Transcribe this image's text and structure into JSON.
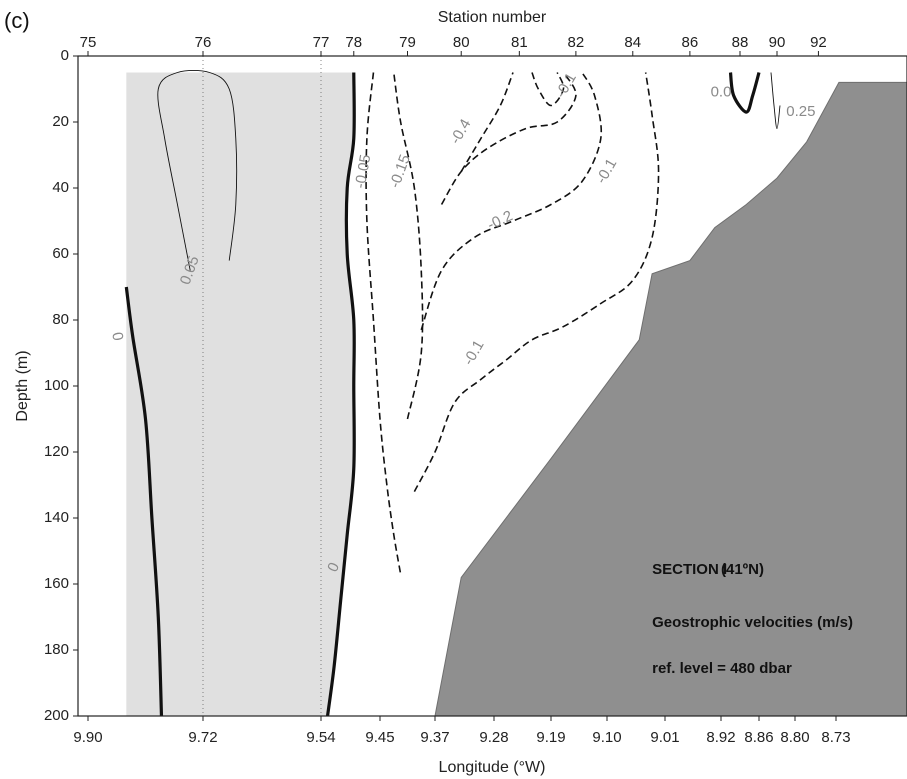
{
  "chart_data": {
    "type": "contour",
    "panel_label": "(c)",
    "top_axis_label": "Station number",
    "xlabel": "Longitude (°W)",
    "ylabel": "Depth (m)",
    "ylim": [
      0,
      200
    ],
    "y_ticks": [
      0,
      20,
      40,
      60,
      80,
      100,
      120,
      140,
      160,
      180,
      200
    ],
    "x_ticks": [
      "9.90",
      "9.72",
      "9.54",
      "9.45",
      "9.37",
      "9.28",
      "9.19",
      "9.10",
      "9.01",
      "8.92",
      "8.86",
      "8.80",
      "8.73"
    ],
    "x_tick_values": [
      9.9,
      9.72,
      9.54,
      9.45,
      9.37,
      9.28,
      9.19,
      9.1,
      9.01,
      8.92,
      8.86,
      8.8,
      8.73
    ],
    "stations": [
      {
        "label": "75",
        "lon": 9.9
      },
      {
        "label": "76",
        "lon": 9.72
      },
      {
        "label": "77",
        "lon": 9.54
      },
      {
        "label": "78",
        "lon": 9.49
      },
      {
        "label": "79",
        "lon": 9.41
      },
      {
        "label": "80",
        "lon": 9.33
      },
      {
        "label": "81",
        "lon": 9.24
      },
      {
        "label": "82",
        "lon": 9.15
      },
      {
        "label": "84",
        "lon": 9.06
      },
      {
        "label": "86",
        "lon": 8.97
      },
      {
        "label": "88",
        "lon": 8.89
      },
      {
        "label": "90",
        "lon": 8.83
      },
      {
        "label": "92",
        "lon": 8.76
      }
    ],
    "bathymetry": [
      [
        9.37,
        200
      ],
      [
        9.33,
        158
      ],
      [
        9.19,
        122
      ],
      [
        9.05,
        86
      ],
      [
        9.03,
        66
      ],
      [
        8.97,
        62
      ],
      [
        8.93,
        52
      ],
      [
        8.88,
        45
      ],
      [
        8.83,
        37
      ],
      [
        8.78,
        26
      ],
      [
        8.725,
        8
      ]
    ],
    "shaded_region": {
      "lon_from": 9.84,
      "depth_top": 5
    },
    "contours": [
      {
        "level": 0,
        "style": "thick",
        "points": [
          [
            9.84,
            70
          ],
          [
            9.83,
            85
          ],
          [
            9.81,
            110
          ],
          [
            9.8,
            140
          ],
          [
            9.79,
            170
          ],
          [
            9.785,
            200
          ]
        ]
      },
      {
        "level": 0,
        "style": "thick",
        "points": [
          [
            9.49,
            5
          ],
          [
            9.49,
            25
          ],
          [
            9.5,
            40
          ],
          [
            9.5,
            60
          ],
          [
            9.49,
            80
          ],
          [
            9.49,
            100
          ],
          [
            9.49,
            125
          ],
          [
            9.5,
            145
          ],
          [
            9.51,
            165
          ],
          [
            9.52,
            185
          ],
          [
            9.53,
            200
          ]
        ]
      },
      {
        "level": 0.05,
        "style": "solid",
        "points": [
          [
            9.68,
            62
          ],
          [
            9.67,
            45
          ],
          [
            9.67,
            25
          ],
          [
            9.68,
            10
          ],
          [
            9.71,
            5
          ],
          [
            9.76,
            5
          ],
          [
            9.79,
            10
          ],
          [
            9.78,
            25
          ],
          [
            9.76,
            45
          ],
          [
            9.74,
            65
          ]
        ]
      },
      {
        "level": -0.05,
        "style": "dashed",
        "points": [
          [
            9.46,
            5
          ],
          [
            9.47,
            25
          ],
          [
            9.47,
            50
          ],
          [
            9.46,
            80
          ],
          [
            9.45,
            110
          ],
          [
            9.44,
            130
          ],
          [
            9.43,
            145
          ],
          [
            9.42,
            157
          ]
        ]
      },
      {
        "level": -0.1,
        "style": "dashed",
        "points": [
          [
            9.4,
            132
          ],
          [
            9.37,
            120
          ],
          [
            9.34,
            105
          ],
          [
            9.3,
            98
          ],
          [
            9.26,
            92
          ],
          [
            9.22,
            86
          ],
          [
            9.17,
            82
          ],
          [
            9.11,
            75
          ],
          [
            9.06,
            68
          ],
          [
            9.03,
            55
          ],
          [
            9.02,
            35
          ],
          [
            9.03,
            18
          ],
          [
            9.04,
            5
          ]
        ]
      },
      {
        "level": -0.15,
        "style": "dashed",
        "points": [
          [
            9.41,
            110
          ],
          [
            9.39,
            90
          ],
          [
            9.39,
            65
          ],
          [
            9.4,
            40
          ],
          [
            9.42,
            20
          ],
          [
            9.43,
            5
          ]
        ]
      },
      {
        "level": -0.2,
        "style": "dashed",
        "points": [
          [
            9.39,
            83
          ],
          [
            9.36,
            65
          ],
          [
            9.31,
            55
          ],
          [
            9.25,
            50
          ],
          [
            9.19,
            45
          ],
          [
            9.14,
            38
          ],
          [
            9.11,
            25
          ],
          [
            9.12,
            12
          ],
          [
            9.14,
            5
          ]
        ]
      },
      {
        "level": -0.3,
        "style": "dashed",
        "points": [
          [
            9.36,
            45
          ],
          [
            9.33,
            35
          ],
          [
            9.29,
            28
          ],
          [
            9.23,
            22
          ],
          [
            9.18,
            20
          ],
          [
            9.15,
            12
          ],
          [
            9.17,
            5
          ]
        ]
      },
      {
        "level": -0.4,
        "style": "dashed",
        "points": [
          [
            9.33,
            35
          ],
          [
            9.3,
            25
          ],
          [
            9.27,
            15
          ],
          [
            9.25,
            5
          ]
        ]
      },
      {
        "level": -0.1,
        "style": "dashed",
        "points": [
          [
            9.22,
            5
          ],
          [
            9.21,
            10
          ],
          [
            9.19,
            15
          ],
          [
            9.17,
            10
          ],
          [
            9.18,
            5
          ]
        ]
      },
      {
        "level": 0,
        "style": "thick",
        "points": [
          [
            8.905,
            5
          ],
          [
            8.9,
            12
          ],
          [
            8.88,
            17
          ],
          [
            8.87,
            12
          ],
          [
            8.86,
            5
          ]
        ]
      },
      {
        "level": 0.25,
        "style": "solid",
        "points": [
          [
            8.84,
            5
          ],
          [
            8.835,
            15
          ],
          [
            8.83,
            22
          ],
          [
            8.825,
            15
          ]
        ]
      }
    ],
    "contour_labels": [
      {
        "text": "0",
        "lon": 9.855,
        "depth": 85,
        "rotate": 80
      },
      {
        "text": "0",
        "lon": 9.52,
        "depth": 155,
        "rotate": -65
      },
      {
        "text": "0.05",
        "lon": 9.74,
        "depth": 65,
        "rotate": -70
      },
      {
        "text": "-0.05",
        "lon": 9.475,
        "depth": 35,
        "rotate": -80
      },
      {
        "text": "-0.15",
        "lon": 9.42,
        "depth": 35,
        "rotate": -70
      },
      {
        "text": "-0.4",
        "lon": 9.33,
        "depth": 23,
        "rotate": -60
      },
      {
        "text": "-0.2",
        "lon": 9.27,
        "depth": 50,
        "rotate": -25
      },
      {
        "text": "-0.1",
        "lon": 9.31,
        "depth": 90,
        "rotate": -60
      },
      {
        "text": "-0.1",
        "lon": 9.1,
        "depth": 35,
        "rotate": -60
      },
      {
        "text": "-0.1",
        "lon": 9.165,
        "depth": 9,
        "rotate": -60
      },
      {
        "text": "0.25",
        "lon": 8.79,
        "depth": 17,
        "rotate": 0
      },
      {
        "text": "0.0",
        "lon": 8.92,
        "depth": 11,
        "rotate": 0
      }
    ],
    "annotations": [
      {
        "text": "SECTION I",
        "lon": 9.03,
        "depth": 157
      },
      {
        "text": "(41ºN)",
        "lon": 8.92,
        "depth": 157
      },
      {
        "text": "Geostrophic velocities (m/s)",
        "lon": 9.03,
        "depth": 173
      },
      {
        "text": "ref. level = 480 dbar",
        "lon": 9.03,
        "depth": 187
      }
    ]
  }
}
